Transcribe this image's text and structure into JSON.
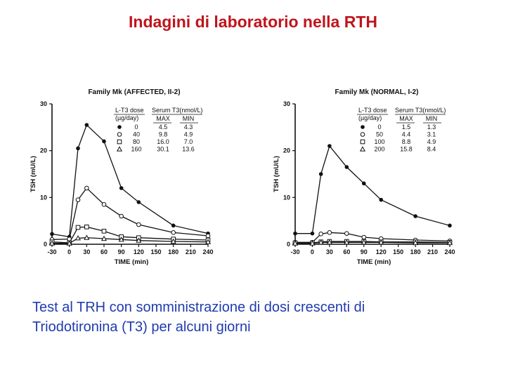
{
  "slide": {
    "title": "Indagini di laboratorio nella RTH",
    "caption_line1": "Test al TRH con somministrazione di dosi crescenti di",
    "caption_line2": "Triodotironina (T3) per alcuni giorni"
  },
  "colors": {
    "title": "#c0141c",
    "caption": "#1f3bb0",
    "ink": "#111111"
  },
  "chart_data": [
    {
      "type": "line",
      "title": "Family Mk (AFFECTED, II-2)",
      "xlabel": "TIME (min)",
      "ylabel": "TSH (mU/L)",
      "x": [
        -30,
        0,
        15,
        30,
        60,
        90,
        120,
        150,
        180,
        210,
        240
      ],
      "xticks": [
        -30,
        0,
        30,
        60,
        90,
        120,
        150,
        180,
        210,
        240
      ],
      "yticks": [
        0,
        10,
        20,
        30
      ],
      "xlim": [
        -30,
        240
      ],
      "ylim": [
        0,
        30
      ],
      "legend_headers": {
        "dose": "L-T3 dose",
        "dose_unit": "(µg/day)",
        "serum": "Serum T3(nmol/L)",
        "max": "MAX",
        "min": "MIN"
      },
      "series": [
        {
          "dose": "0",
          "max": "4.5",
          "min": "4.3",
          "marker": "filled-circle",
          "values": [
            2.2,
            1.6,
            20.5,
            25.5,
            22,
            12,
            9,
            null,
            4,
            null,
            2.3
          ]
        },
        {
          "dose": "40",
          "max": "9.8",
          "min": "4.9",
          "marker": "open-circle",
          "values": [
            1,
            1.1,
            9.5,
            12,
            8.5,
            6,
            4.2,
            null,
            2.5,
            null,
            1.8
          ]
        },
        {
          "dose": "80",
          "max": "16.0",
          "min": "7.0",
          "marker": "open-square",
          "values": [
            0.5,
            0.3,
            3.6,
            3.7,
            2.8,
            1.6,
            1.4,
            null,
            1.1,
            null,
            0.9
          ]
        },
        {
          "dose": "160",
          "max": "30.1",
          "min": "13.6",
          "marker": "open-triangle",
          "values": [
            0.2,
            0.2,
            1.3,
            1.4,
            1.2,
            1.0,
            0.8,
            null,
            0.6,
            null,
            0.5
          ]
        }
      ]
    },
    {
      "type": "line",
      "title": "Family Mk (NORMAL, I-2)",
      "xlabel": "TIME (min)",
      "ylabel": "TSH (mU/L)",
      "x": [
        -30,
        0,
        15,
        30,
        60,
        90,
        120,
        150,
        180,
        210,
        240
      ],
      "xticks": [
        -30,
        0,
        30,
        60,
        90,
        120,
        150,
        180,
        210,
        240
      ],
      "yticks": [
        0,
        10,
        20,
        30
      ],
      "xlim": [
        -30,
        240
      ],
      "ylim": [
        0,
        30
      ],
      "legend_headers": {
        "dose": "L-T3 dose",
        "dose_unit": "(µg/day)",
        "serum": "Serum T3(nmol/L)",
        "max": "MAX",
        "min": "MIN"
      },
      "series": [
        {
          "dose": "0",
          "max": "1.5",
          "min": "1.3",
          "marker": "filled-circle",
          "values": [
            2.3,
            2.3,
            15,
            21,
            16.5,
            13,
            9.5,
            null,
            6,
            null,
            4
          ]
        },
        {
          "dose": "50",
          "max": "4.4",
          "min": "3.1",
          "marker": "open-circle",
          "values": [
            0.4,
            0.4,
            2.2,
            2.5,
            2.3,
            1.5,
            1.2,
            null,
            0.9,
            null,
            0.7
          ]
        },
        {
          "dose": "100",
          "max": "8.8",
          "min": "4.9",
          "marker": "open-square",
          "values": [
            0.3,
            0.3,
            0.5,
            0.6,
            0.6,
            0.6,
            0.5,
            null,
            0.5,
            null,
            0.4
          ]
        },
        {
          "dose": "200",
          "max": "15.8",
          "min": "8.4",
          "marker": "open-triangle",
          "values": [
            0.2,
            0.2,
            0.4,
            0.4,
            0.4,
            0.4,
            0.4,
            null,
            0.3,
            null,
            0.3
          ]
        }
      ]
    }
  ]
}
